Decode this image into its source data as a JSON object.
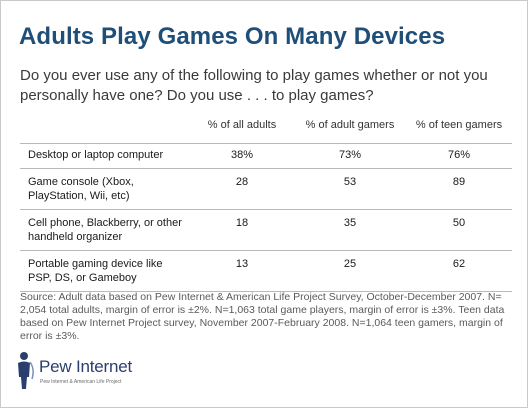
{
  "title": "Adults Play Games On Many Devices",
  "question": "Do you ever use any of the following to play games whether or not you personally have one? Do you use . . . to play games?",
  "chart_data": {
    "type": "table",
    "columns": [
      "",
      "% of  all adults",
      "% of adult gamers",
      "% of teen gamers"
    ],
    "rows": [
      {
        "label": "Desktop or laptop computer",
        "values": [
          "38%",
          "73%",
          "76%"
        ]
      },
      {
        "label": "Game console (Xbox, PlayStation, Wii, etc)",
        "values": [
          "28",
          "53",
          "89"
        ]
      },
      {
        "label": "Cell phone, Blackberry, or other handheld organizer",
        "values": [
          "18",
          "35",
          "50"
        ]
      },
      {
        "label": "Portable gaming device like PSP, DS, or Gameboy",
        "values": [
          "13",
          "25",
          "62"
        ]
      }
    ]
  },
  "source": "Source:  Adult data based on Pew Internet & American Life Project Survey, October-December 2007. N= 2,054 total adults, margin of error is ±2%. N=1,063 total game players, margin of error is ±3%. Teen data based on Pew Internet Project survey, November 2007-February 2008. N=1,064 teen gamers, margin of error is ±3%.",
  "logo": {
    "icon": "pew-person-icon",
    "name": "Pew Internet",
    "tagline": "Pew Internet & American Life Project"
  },
  "colors": {
    "title": "#1f4e79",
    "logo_blue": "#2a3f6e",
    "rule": "#b9b9b9"
  }
}
